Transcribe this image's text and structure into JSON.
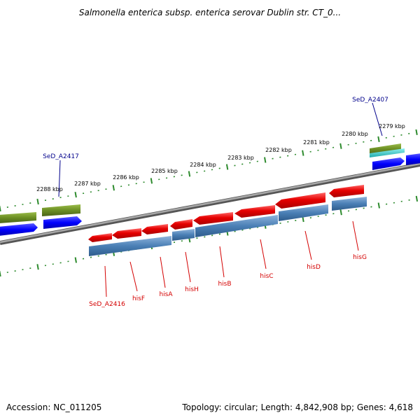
{
  "title": "Salmonella enterica subsp. enterica serovar Dublin str. CT_0...",
  "footer": {
    "accession": "Accession: NC_011205",
    "summary": "Topology: circular; Length: 4,842,908 bp; Genes: 4,618"
  },
  "scale_labels": [
    "2279 kbp",
    "2280 kbp",
    "2281 kbp",
    "2282 kbp",
    "2283 kbp",
    "2284 kbp",
    "2285 kbp",
    "2286 kbp",
    "2287 kbp",
    "2288 kbp"
  ],
  "gene_labels": [
    "hisG",
    "hisD",
    "hisC",
    "hisB",
    "hisH",
    "hisA",
    "hisF",
    "SeD_A2416"
  ],
  "locus_labels": [
    "SeD_A2407",
    "SeD_A2417"
  ],
  "colors": {
    "his_genes": "#e60000",
    "his_label": "#d40000",
    "cds_steel": "#4a7fb5",
    "blue_features": "#0000ff",
    "olive_features": "#6b8e23",
    "cyan_feature": "#33cccc",
    "backbone": "#808080",
    "ticks": "#2e8b2e",
    "locus_label": "#00008b"
  }
}
